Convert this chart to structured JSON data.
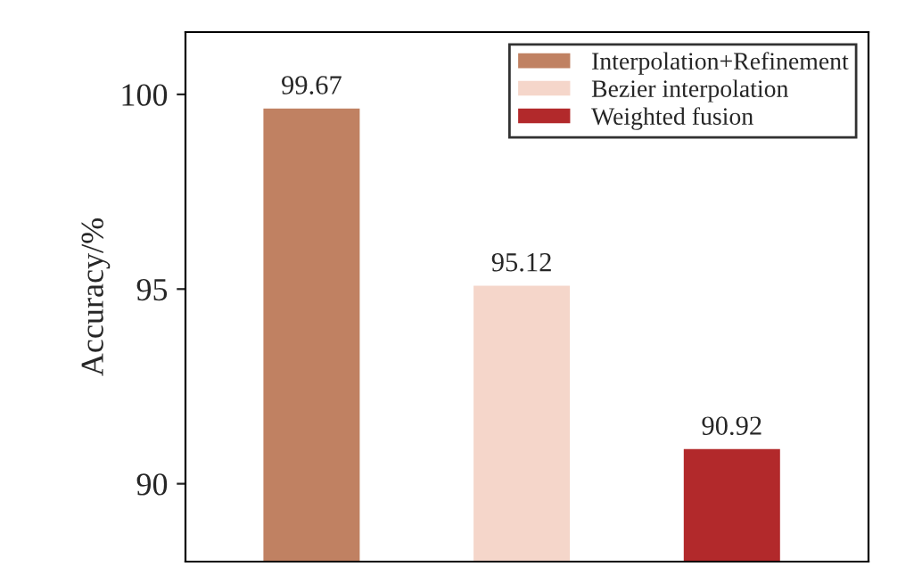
{
  "chart_data": {
    "type": "bar",
    "categories": [
      null,
      null,
      null
    ],
    "ylabel": "Accuracy/%",
    "ylim": [
      88,
      101.6
    ],
    "yticks": [
      90,
      95,
      100
    ],
    "series": [
      {
        "name": "Interpolation+Refinement",
        "color": "#c08162",
        "values": [
          99.67,
          null,
          null
        ]
      },
      {
        "name": "Bezier interpolation",
        "color": "#f5d6ca",
        "values": [
          null,
          95.12,
          null
        ]
      },
      {
        "name": "Weighted fusion",
        "color": "#b2292b",
        "values": [
          null,
          null,
          90.92
        ]
      }
    ],
    "data_labels": true,
    "legend": "top right",
    "grid": false,
    "tick_labels": "y"
  }
}
